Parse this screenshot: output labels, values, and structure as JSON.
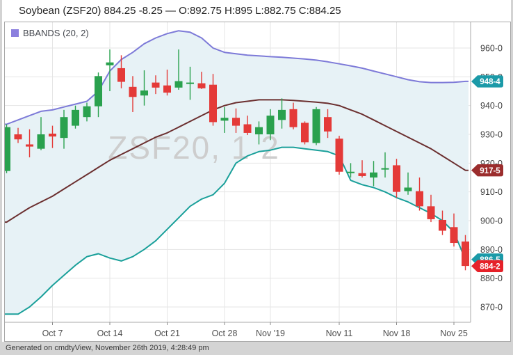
{
  "header": {
    "title": "Soybean (ZSF20) 884.25 -8.25 — O:892.75 H:895 L:882.75 C:884.25"
  },
  "legend": {
    "label": "BBANDS (20, 2)",
    "swatch_color": "#8b7fde"
  },
  "watermark": "ZSF20, 1 2",
  "footer": {
    "text": "Generated on cmdtyView, November 26th 2019, 4:28:49 pm"
  },
  "colors": {
    "up": "#2aa14e",
    "down": "#e43a38",
    "band_upper": "#7d7ad8",
    "band_middle": "#6b2f2f",
    "band_lower": "#1aa09a",
    "band_fill": "#e7f2f6",
    "grid": "#e5e5e5",
    "plot_border": "#a8a8a8",
    "tick": "#8a8a8a",
    "axis_text": "#3d3d3d",
    "watermark": "#cdcdcd",
    "badge_teal": "#1b9aa8",
    "badge_maroon": "#9b2d2d",
    "badge_red": "#e62129",
    "badge_text": "#ffffff"
  },
  "chart_data": {
    "type": "candlestick",
    "symbol": "ZSF20",
    "indicator": {
      "name": "BBANDS",
      "period": 20,
      "stdev": 2
    },
    "y_axis": {
      "min": 865,
      "max": 968,
      "tick_values": [
        960,
        950,
        940,
        930,
        920,
        910,
        900,
        890,
        880,
        870
      ],
      "tick_labels": [
        "960-0",
        "950-0",
        "940-0",
        "930-0",
        "920-0",
        "910-0",
        "900-0",
        "890-0",
        "880-0",
        "870-0"
      ]
    },
    "x_axis": {
      "labels": [
        {
          "text": "Oct 7",
          "i": 4
        },
        {
          "text": "Oct 14",
          "i": 9
        },
        {
          "text": "Oct 21",
          "i": 14
        },
        {
          "text": "Oct 28",
          "i": 19
        },
        {
          "text": "Nov '19",
          "i": 23
        },
        {
          "text": "Nov 11",
          "i": 29
        },
        {
          "text": "Nov 18",
          "i": 34
        },
        {
          "text": "Nov 25",
          "i": 39
        }
      ]
    },
    "candles": [
      {
        "d": "Oct 1",
        "o": 917.25,
        "h": 933.5,
        "l": 916.5,
        "c": 932.5
      },
      {
        "d": "Oct 2",
        "o": 930.0,
        "h": 932.25,
        "l": 927.0,
        "c": 928.25
      },
      {
        "d": "Oct 3",
        "o": 926.5,
        "h": 931.75,
        "l": 922.0,
        "c": 925.75
      },
      {
        "d": "Oct 4",
        "o": 925.0,
        "h": 936.0,
        "l": 924.5,
        "c": 930.0
      },
      {
        "d": "Oct 7",
        "o": 930.25,
        "h": 933.0,
        "l": 925.25,
        "c": 929.25
      },
      {
        "d": "Oct 8",
        "o": 928.75,
        "h": 938.5,
        "l": 925.0,
        "c": 936.0
      },
      {
        "d": "Oct 9",
        "o": 933.0,
        "h": 940.0,
        "l": 932.0,
        "c": 938.5
      },
      {
        "d": "Oct 10",
        "o": 936.0,
        "h": 941.0,
        "l": 934.5,
        "c": 939.75
      },
      {
        "d": "Oct 11",
        "o": 939.75,
        "h": 951.5,
        "l": 936.0,
        "c": 950.25
      },
      {
        "d": "Oct 14",
        "o": 954.0,
        "h": 959.5,
        "l": 945.0,
        "c": 955.0
      },
      {
        "d": "Oct 15",
        "o": 953.0,
        "h": 957.5,
        "l": 946.0,
        "c": 948.25
      },
      {
        "d": "Oct 16",
        "o": 946.5,
        "h": 950.25,
        "l": 937.75,
        "c": 943.0
      },
      {
        "d": "Oct 17",
        "o": 943.5,
        "h": 952.25,
        "l": 940.0,
        "c": 945.25
      },
      {
        "d": "Oct 18",
        "o": 948.0,
        "h": 950.5,
        "l": 944.0,
        "c": 946.25
      },
      {
        "d": "Oct 21",
        "o": 947.0,
        "h": 952.5,
        "l": 943.5,
        "c": 944.5
      },
      {
        "d": "Oct 22",
        "o": 946.25,
        "h": 959.5,
        "l": 945.5,
        "c": 948.5
      },
      {
        "d": "Oct 23",
        "o": 947.5,
        "h": 953.5,
        "l": 942.0,
        "c": 948.0
      },
      {
        "d": "Oct 24",
        "o": 947.75,
        "h": 951.75,
        "l": 945.75,
        "c": 946.0
      },
      {
        "d": "Oct 25",
        "o": 947.25,
        "h": 951.0,
        "l": 933.0,
        "c": 934.25
      },
      {
        "d": "Oct 28",
        "o": 934.75,
        "h": 939.5,
        "l": 930.5,
        "c": 935.75
      },
      {
        "d": "Oct 29",
        "o": 935.75,
        "h": 939.0,
        "l": 930.5,
        "c": 933.0
      },
      {
        "d": "Oct 30",
        "o": 933.5,
        "h": 936.5,
        "l": 929.75,
        "c": 930.5
      },
      {
        "d": "Oct 31",
        "o": 930.0,
        "h": 934.5,
        "l": 926.5,
        "c": 932.5
      },
      {
        "d": "Nov 1",
        "o": 930.0,
        "h": 938.75,
        "l": 928.0,
        "c": 936.5
      },
      {
        "d": "Nov 4",
        "o": 935.0,
        "h": 942.5,
        "l": 932.0,
        "c": 938.5
      },
      {
        "d": "Nov 5",
        "o": 938.75,
        "h": 941.0,
        "l": 931.75,
        "c": 932.5
      },
      {
        "d": "Nov 6",
        "o": 934.0,
        "h": 934.5,
        "l": 926.5,
        "c": 927.25
      },
      {
        "d": "Nov 7",
        "o": 927.0,
        "h": 939.5,
        "l": 926.25,
        "c": 938.75
      },
      {
        "d": "Nov 8",
        "o": 936.0,
        "h": 938.75,
        "l": 928.75,
        "c": 931.0
      },
      {
        "d": "Nov 11",
        "o": 928.5,
        "h": 929.5,
        "l": 916.0,
        "c": 917.0
      },
      {
        "d": "Nov 12",
        "o": 916.5,
        "h": 920.0,
        "l": 915.0,
        "c": 917.0
      },
      {
        "d": "Nov 13",
        "o": 916.5,
        "h": 921.0,
        "l": 915.0,
        "c": 915.5
      },
      {
        "d": "Nov 14",
        "o": 915.0,
        "h": 920.75,
        "l": 912.0,
        "c": 916.75
      },
      {
        "d": "Nov 15",
        "o": 917.75,
        "h": 923.75,
        "l": 915.0,
        "c": 918.25
      },
      {
        "d": "Nov 18",
        "o": 919.25,
        "h": 921.5,
        "l": 908.0,
        "c": 910.0
      },
      {
        "d": "Nov 19",
        "o": 910.25,
        "h": 916.75,
        "l": 909.0,
        "c": 911.5
      },
      {
        "d": "Nov 20",
        "o": 910.25,
        "h": 915.0,
        "l": 903.5,
        "c": 905.0
      },
      {
        "d": "Nov 21",
        "o": 905.0,
        "h": 909.0,
        "l": 899.5,
        "c": 900.5
      },
      {
        "d": "Nov 22",
        "o": 900.25,
        "h": 903.5,
        "l": 895.0,
        "c": 896.5
      },
      {
        "d": "Nov 25",
        "o": 897.75,
        "h": 902.5,
        "l": 891.0,
        "c": 892.25
      },
      {
        "d": "Nov 26",
        "o": 892.75,
        "h": 895.0,
        "l": 882.75,
        "c": 884.25
      }
    ],
    "bbands": {
      "upper": [
        933.5,
        935,
        936.5,
        938,
        938.5,
        939.5,
        940.5,
        941.5,
        945,
        952,
        956,
        958.5,
        961.5,
        963.5,
        965,
        966,
        965.5,
        963.5,
        960,
        958.5,
        958,
        957.5,
        957.3,
        957,
        956.8,
        956.5,
        956.2,
        955.8,
        955.2,
        954.5,
        953.8,
        953,
        952,
        951,
        950,
        949,
        948.3,
        948,
        948,
        948.1,
        948.4
      ],
      "middle": [
        899.5,
        902,
        904.5,
        906.5,
        908.5,
        911,
        913.5,
        916,
        918.5,
        921,
        923,
        925,
        927,
        929,
        930.5,
        932.5,
        934.5,
        936.5,
        938.5,
        940,
        941,
        941.5,
        942,
        942,
        942,
        941.8,
        941.5,
        941.2,
        940.8,
        940,
        938.5,
        937,
        935,
        933,
        931,
        929,
        927,
        925,
        922.5,
        920,
        917.5
      ],
      "lower": [
        867.5,
        867.5,
        870,
        873.5,
        877.5,
        881,
        884.5,
        887.5,
        888.5,
        887,
        886,
        887.5,
        890,
        893,
        897,
        901,
        905,
        907.5,
        909,
        913,
        920,
        922.5,
        924,
        924.5,
        925.5,
        925.5,
        925,
        924.5,
        924,
        922.5,
        914,
        912.5,
        911.5,
        910,
        908,
        906.5,
        904.5,
        902.5,
        900,
        896,
        886.5
      ]
    },
    "last_value_badges": [
      {
        "label": "948-4",
        "value": 948.4,
        "color": "teal"
      },
      {
        "label": "917-5",
        "value": 917.5,
        "color": "maroon"
      },
      {
        "label": "886-5",
        "value": 886.5,
        "color": "teal"
      },
      {
        "label": "884-2",
        "value": 884.2,
        "color": "red"
      }
    ]
  }
}
